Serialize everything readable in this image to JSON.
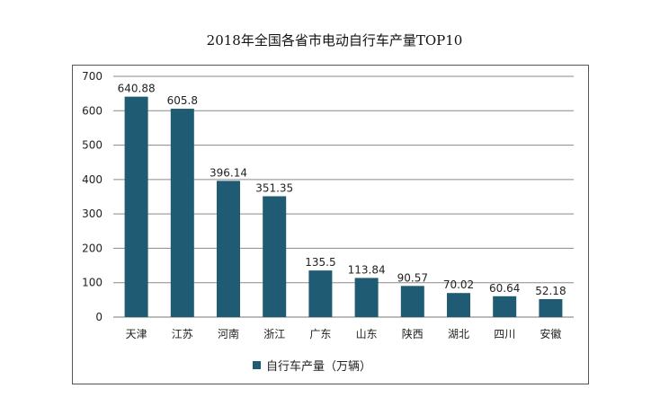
{
  "chart_data": {
    "type": "bar",
    "title": "2018年全国各省市电动自行车产量TOP10",
    "categories": [
      "天津",
      "江苏",
      "河南",
      "浙江",
      "广东",
      "山东",
      "陕西",
      "湖北",
      "四川",
      "安徽"
    ],
    "series": [
      {
        "name": "自行车产量（万辆）",
        "values": [
          640.88,
          605.8,
          396.14,
          351.35,
          135.5,
          113.84,
          90.57,
          70.02,
          60.64,
          52.18
        ],
        "labels": [
          "640.88",
          "605.8",
          "396.14",
          "351.35",
          "135.5",
          "113.84",
          "90.57",
          "70.02",
          "60.64",
          "52.18"
        ],
        "color": "#1f5b72"
      }
    ],
    "ylim": [
      0,
      700
    ],
    "yticks": [
      "0",
      "100",
      "200",
      "300",
      "400",
      "500",
      "600",
      "700"
    ],
    "ytick_values": [
      0,
      100,
      200,
      300,
      400,
      500,
      600,
      700
    ],
    "grid": true,
    "legend_position": "bottom",
    "xlabel": "",
    "ylabel": ""
  }
}
